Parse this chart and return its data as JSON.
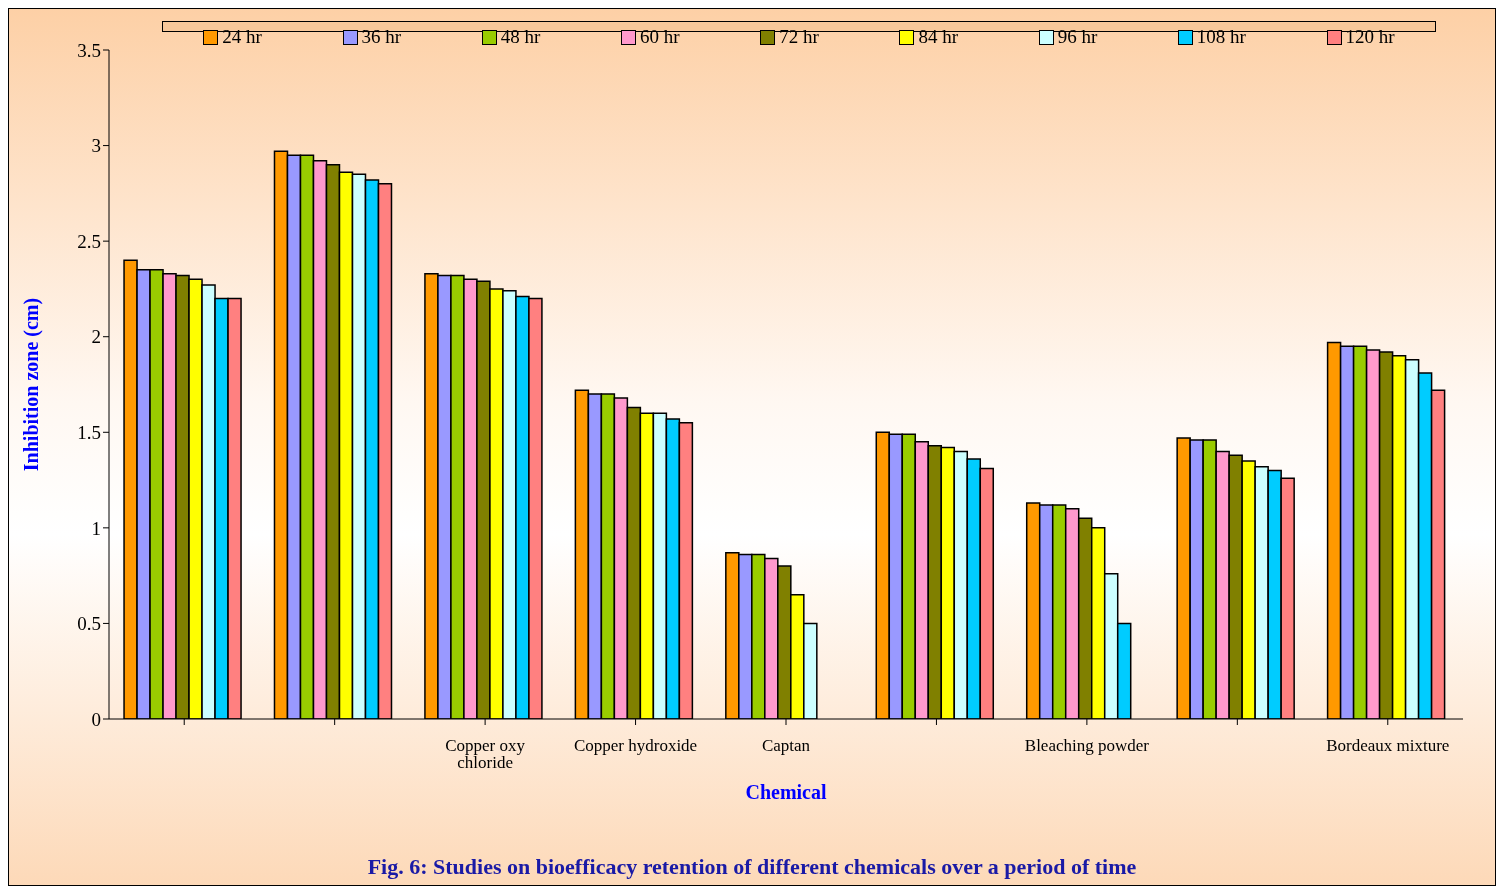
{
  "chart_data": {
    "type": "bar",
    "title": "Fig. 6: Studies on bioefficacy retention of different chemicals over a period of time",
    "xlabel": "Chemical",
    "ylabel": "Inhibition zone (cm)",
    "categories": [
      null,
      null,
      "Copper oxy chloride",
      "Copper hydroxide",
      "Captan",
      null,
      "Bleaching powder",
      null,
      "Bordeaux mixture"
    ],
    "series": [
      {
        "name": "24 hr",
        "color": "#ff9900",
        "values": [
          2.4,
          2.97,
          2.33,
          1.72,
          0.87,
          1.5,
          1.13,
          1.47,
          1.97
        ]
      },
      {
        "name": "36 hr",
        "color": "#9999ff",
        "values": [
          2.35,
          2.95,
          2.32,
          1.7,
          0.86,
          1.49,
          1.12,
          1.46,
          1.95
        ]
      },
      {
        "name": "48 hr",
        "color": "#99cc00",
        "values": [
          2.35,
          2.95,
          2.32,
          1.7,
          0.86,
          1.49,
          1.12,
          1.46,
          1.95
        ]
      },
      {
        "name": "60 hr",
        "color": "#ff99cc",
        "values": [
          2.33,
          2.92,
          2.3,
          1.68,
          0.84,
          1.45,
          1.1,
          1.4,
          1.93
        ]
      },
      {
        "name": "72 hr",
        "color": "#808000",
        "values": [
          2.32,
          2.9,
          2.29,
          1.63,
          0.8,
          1.43,
          1.05,
          1.38,
          1.92
        ]
      },
      {
        "name": "84 hr",
        "color": "#ffff00",
        "values": [
          2.3,
          2.86,
          2.25,
          1.6,
          0.65,
          1.42,
          1.0,
          1.35,
          1.9
        ]
      },
      {
        "name": "96 hr",
        "color": "#ccffff",
        "values": [
          2.27,
          2.85,
          2.24,
          1.6,
          0.5,
          1.4,
          0.76,
          1.32,
          1.88
        ]
      },
      {
        "name": "108 hr",
        "color": "#00ccff",
        "values": [
          2.2,
          2.82,
          2.21,
          1.57,
          null,
          1.36,
          0.5,
          1.3,
          1.81
        ]
      },
      {
        "name": "120 hr",
        "color": "#ff8080",
        "values": [
          2.2,
          2.8,
          2.2,
          1.55,
          null,
          1.31,
          null,
          1.26,
          1.72
        ]
      }
    ],
    "ylim": [
      0,
      3.5
    ],
    "yticks": [
      0,
      0.5,
      1,
      1.5,
      2,
      2.5,
      3,
      3.5
    ],
    "grid": false,
    "legend": "top"
  }
}
